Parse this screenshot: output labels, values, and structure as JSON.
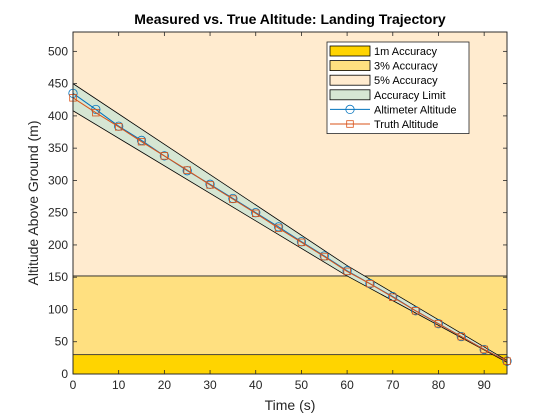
{
  "chart_data": {
    "type": "line",
    "title": "Measured vs. True Altitude: Landing Trajectory",
    "xlabel": "Time (s)",
    "ylabel": "Altitude Above Ground (m)",
    "xlim": [
      0,
      95
    ],
    "ylim": [
      0,
      530
    ],
    "xticks": [
      0,
      10,
      20,
      30,
      40,
      50,
      60,
      70,
      80,
      90
    ],
    "yticks": [
      0,
      50,
      100,
      150,
      200,
      250,
      300,
      350,
      400,
      450,
      500
    ],
    "grid": false,
    "legend_position": "top-right",
    "regions": [
      {
        "name": "1m Accuracy",
        "y_min": 0,
        "y_max": 30,
        "color": "#ffd400"
      },
      {
        "name": "3% Accuracy",
        "y_min": 30,
        "y_max": 152,
        "color": "#ffe080"
      },
      {
        "name": "5% Accuracy",
        "y_min": 152,
        "y_max": 530,
        "color": "#ffebcf"
      }
    ],
    "accuracy_limit": {
      "name": "Accuracy Limit",
      "color": "#d6e6d3",
      "upper": [
        [
          0,
          450
        ],
        [
          60,
          168
        ],
        [
          95,
          21
        ]
      ],
      "lower": [
        [
          0,
          408
        ],
        [
          60,
          152
        ],
        [
          95,
          18
        ]
      ]
    },
    "series": [
      {
        "name": "Altimeter Altitude",
        "color": "#0072bd",
        "marker": "circle",
        "x": [
          0,
          5,
          10,
          15,
          20,
          25,
          30,
          35,
          40,
          45,
          50,
          55,
          60,
          65,
          70,
          75,
          80,
          85,
          90,
          95
        ],
        "y": [
          435,
          410,
          384,
          362,
          338,
          315,
          294,
          272,
          250,
          228,
          205,
          183,
          160,
          140,
          120,
          98,
          78,
          58,
          38,
          20
        ]
      },
      {
        "name": "Truth Altitude",
        "color": "#d95319",
        "marker": "square",
        "x": [
          0,
          5,
          10,
          15,
          20,
          25,
          30,
          35,
          40,
          45,
          50,
          55,
          60,
          65,
          70,
          75,
          80,
          85,
          90,
          95
        ],
        "y": [
          428,
          405,
          383,
          360,
          338,
          316,
          293,
          271,
          249,
          226,
          204,
          182,
          159,
          140,
          119,
          98,
          78,
          58,
          38,
          20
        ]
      }
    ]
  }
}
